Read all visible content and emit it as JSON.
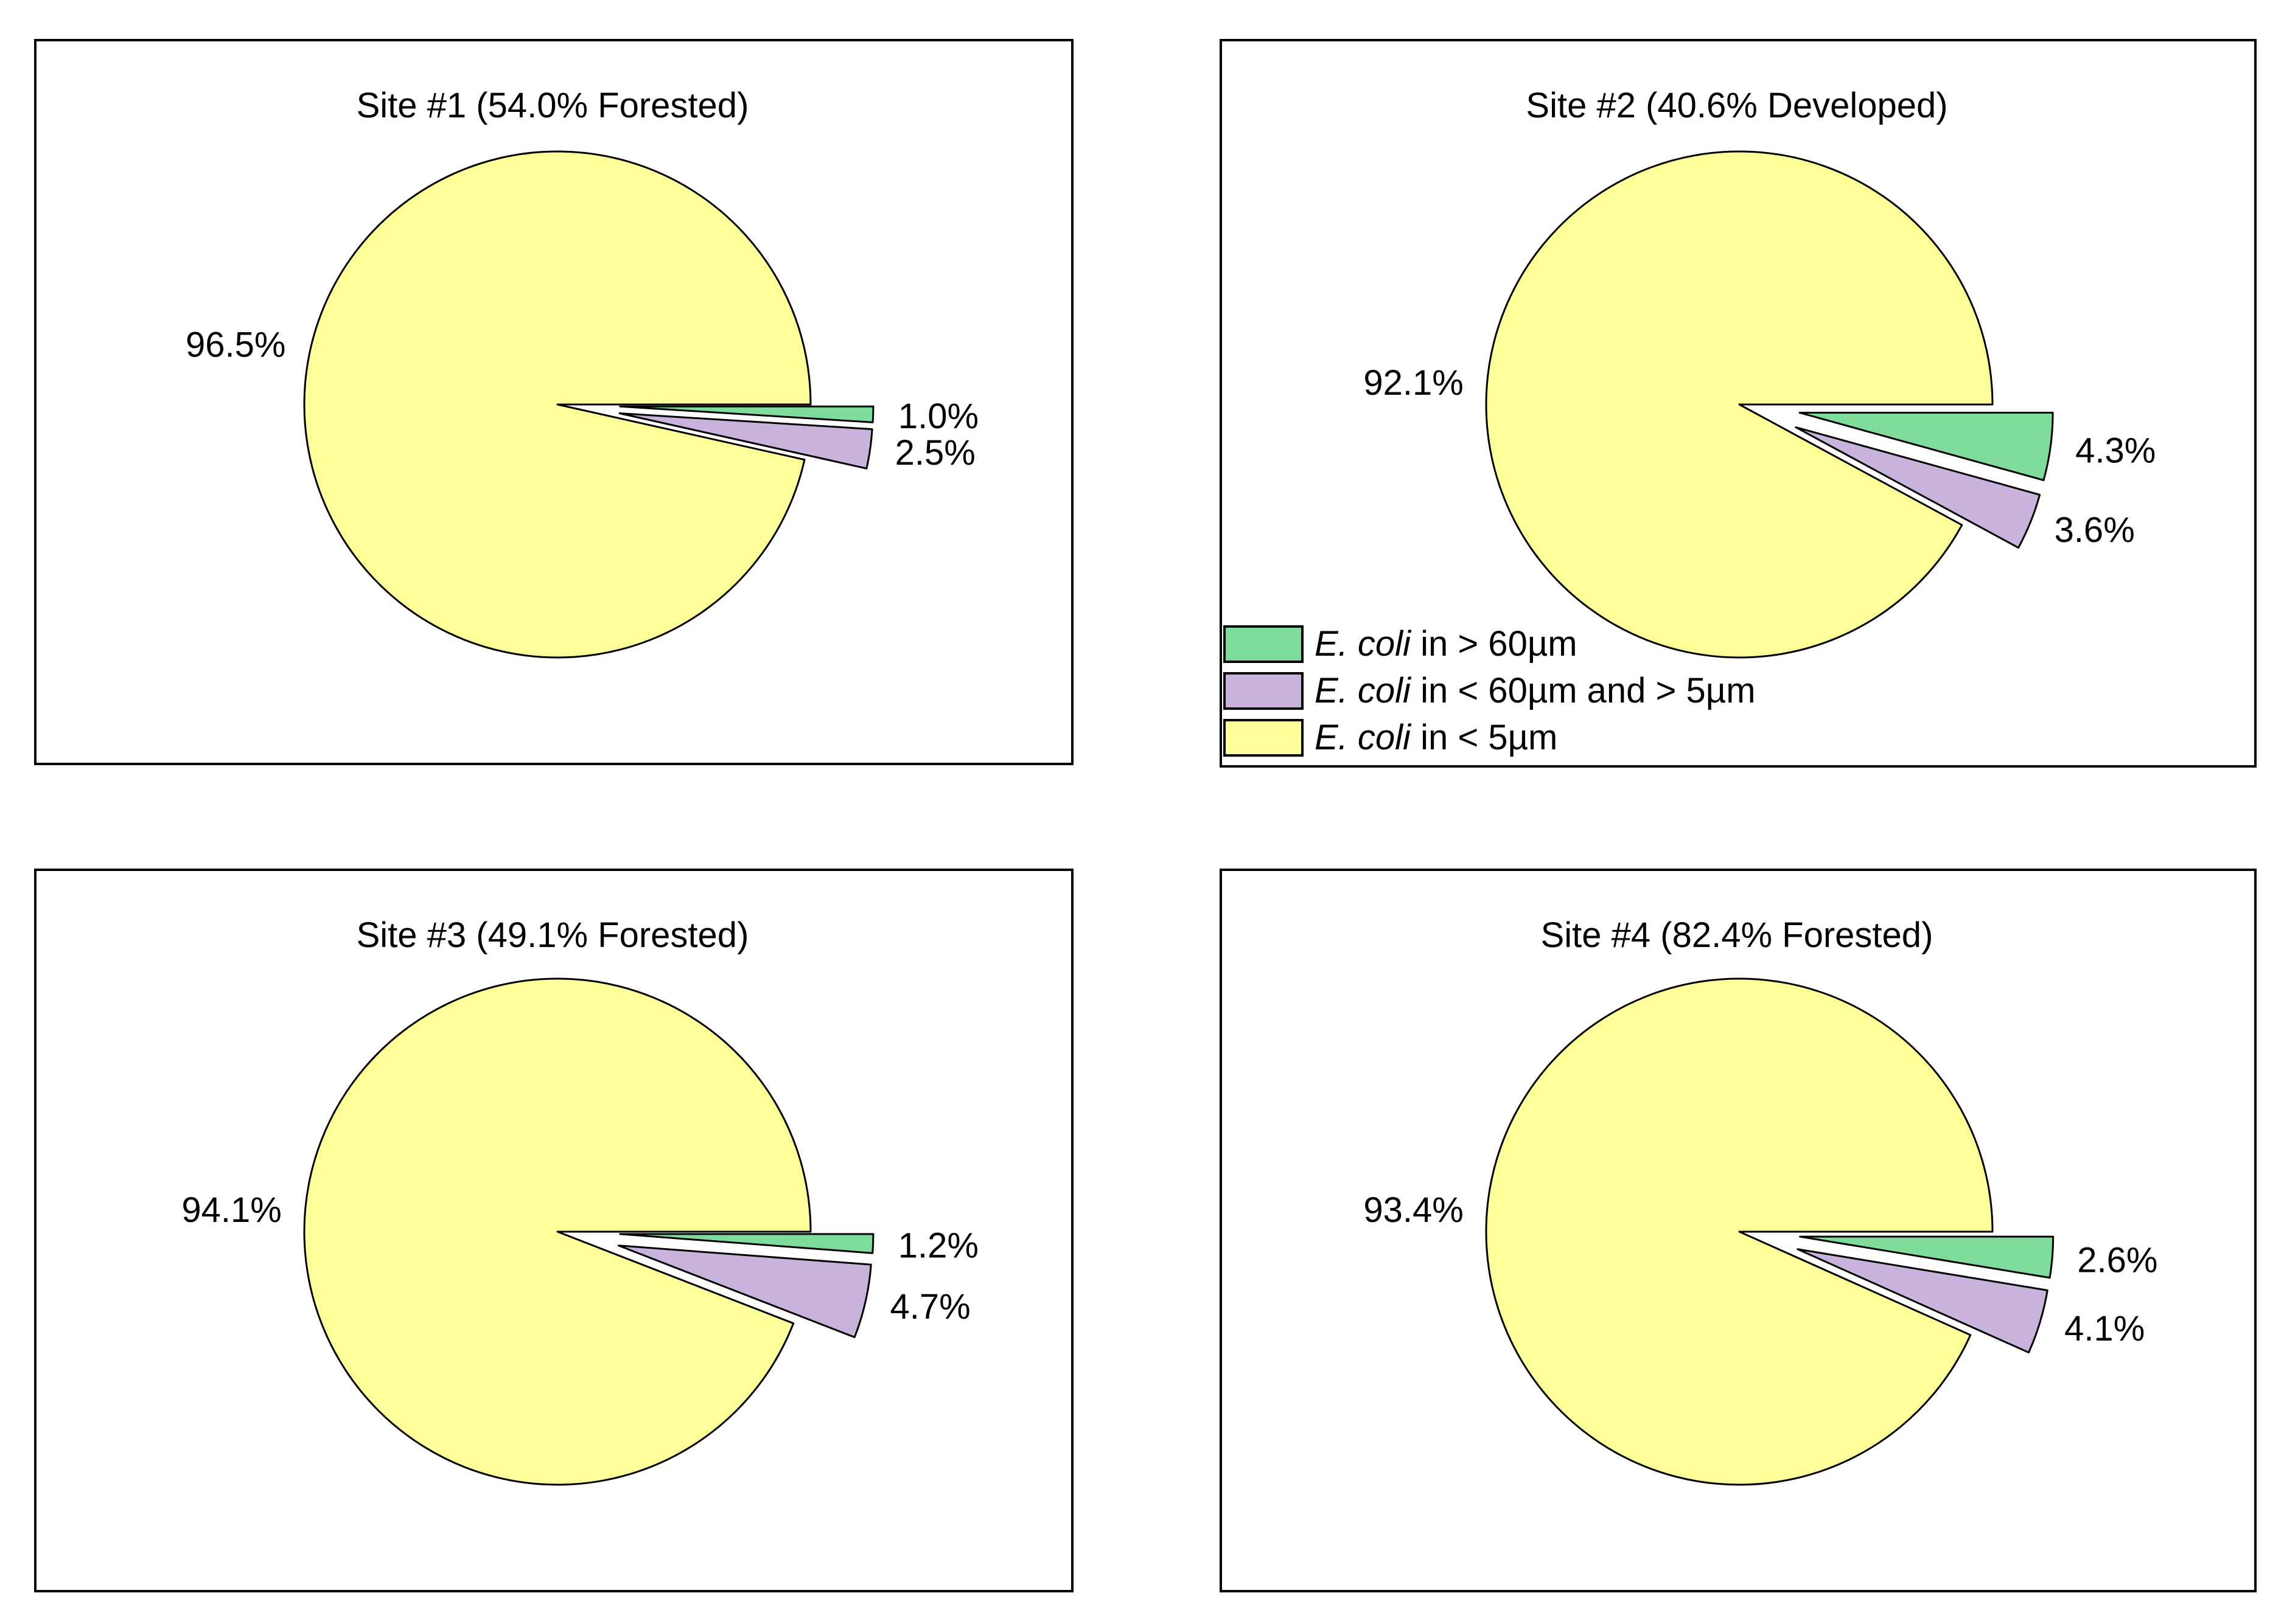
{
  "colors": {
    "large": "#ffff99",
    "medium": "#c9b3dc",
    "small": "#7fdb9b",
    "outline": "#000000"
  },
  "legend": [
    {
      "key": "small",
      "italic": "E. coli",
      "text": " in > 60µm"
    },
    {
      "key": "medium",
      "italic": "E. coli",
      "text": " in < 60µm and > 5µm"
    },
    {
      "key": "large",
      "italic": "E. coli",
      "text": " in < 5µm"
    }
  ],
  "chart_data": [
    {
      "type": "pie",
      "title": "Site #1 (54.0% Forested)",
      "categories": [
        "E. coli in > 60µm",
        "E. coli in < 60µm and > 5µm",
        "E. coli in < 5µm"
      ],
      "values": [
        1.0,
        2.5,
        96.5
      ],
      "labels": [
        "1.0%",
        "2.5%",
        "96.5%"
      ]
    },
    {
      "type": "pie",
      "title": "Site #2 (40.6% Developed)",
      "categories": [
        "E. coli in > 60µm",
        "E. coli in < 60µm and > 5µm",
        "E. coli in < 5µm"
      ],
      "values": [
        4.3,
        3.6,
        92.1
      ],
      "labels": [
        "4.3%",
        "3.6%",
        "92.1%"
      ]
    },
    {
      "type": "pie",
      "title": "Site #3 (49.1% Forested)",
      "categories": [
        "E. coli in > 60µm",
        "E. coli in < 60µm and > 5µm",
        "E. coli in < 5µm"
      ],
      "values": [
        1.2,
        4.7,
        94.1
      ],
      "labels": [
        "1.2%",
        "4.7%",
        "94.1%"
      ]
    },
    {
      "type": "pie",
      "title": "Site #4 (82.4% Forested)",
      "categories": [
        "E. coli in > 60µm",
        "E. coli in < 60µm and > 5µm",
        "E. coli in < 5µm"
      ],
      "values": [
        2.6,
        4.1,
        93.4
      ],
      "labels": [
        "2.6%",
        "4.1%",
        "93.4%"
      ]
    }
  ]
}
